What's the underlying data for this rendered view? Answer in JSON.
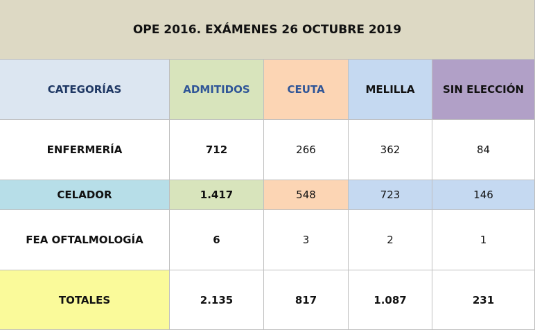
{
  "title": "OPE 2016. EXÁMENES 26 OCTUBRE 2019",
  "table": {
    "header": [
      "CATEGORÍAS",
      "ADMITIDOS",
      "CEUTA",
      "MELILLA",
      "SIN ELECCIÓN"
    ],
    "rows": [
      [
        "ENFERMERÍA",
        "712",
        "266",
        "362",
        "84"
      ],
      [
        "CELADOR",
        "1.417",
        "548",
        "723",
        "146"
      ],
      [
        "FEA OFTALMOLOGÍA",
        "6",
        "3",
        "2",
        "1"
      ]
    ],
    "totals": [
      "TOTALES",
      "2.135",
      "817",
      "1.087",
      "231"
    ]
  }
}
